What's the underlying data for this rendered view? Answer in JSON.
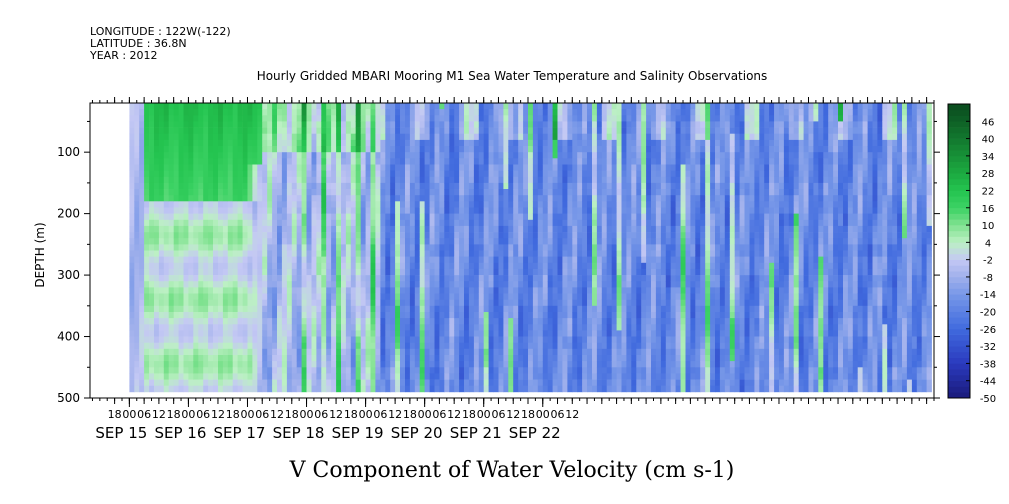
{
  "header": {
    "longitude": "LONGITUDE : 122W(-122)",
    "latitude": "LATITUDE : 36.8N",
    "year": "YEAR : 2012"
  },
  "chart_data": {
    "type": "heatmap",
    "title": "Hourly Gridded MBARI Mooring M1 Sea Water Temperature and Salinity Observations",
    "xlabel": "V Component of Water Velocity (cm s-1)",
    "ylabel": "DEPTH (m)",
    "y_range": [
      500,
      20
    ],
    "y_ticks": [
      100,
      200,
      300,
      400,
      500
    ],
    "y_tick_labels": [
      "100",
      "200",
      "300",
      "400",
      "500"
    ],
    "data_depth_range": [
      20,
      485
    ],
    "x_range_hours": [
      -16,
      327
    ],
    "hour_tick_labels": [
      "18",
      "00",
      "06",
      "12",
      "18",
      "00",
      "06",
      "12",
      "18",
      "00",
      "06",
      "12",
      "18",
      "00",
      "06",
      "12",
      "18",
      "00",
      "06",
      "12",
      "18",
      "00",
      "06",
      "12",
      "18",
      "00",
      "06",
      "12",
      "18",
      "00",
      "06",
      "12"
    ],
    "date_labels": [
      "SEP 15",
      "SEP 16",
      "SEP 17",
      "SEP 18",
      "SEP 19",
      "SEP 20",
      "SEP 21",
      "SEP 22"
    ],
    "colorbar": {
      "levels": [
        -50,
        -44,
        -38,
        -32,
        -26,
        -20,
        -14,
        -8,
        -2,
        4,
        10,
        16,
        22,
        28,
        34,
        40,
        46
      ],
      "labels": [
        "-50",
        "-44",
        "-38",
        "-32",
        "-26",
        "-20",
        "-14",
        "-8",
        "-2",
        "4",
        "10",
        "16",
        "22",
        "28",
        "34",
        "40",
        "46"
      ],
      "range": [
        -50,
        52
      ]
    },
    "field_summary": [
      {
        "period": "SEP 15 00 - SEP 17 06",
        "depth": "20-180 m",
        "value_range": [
          10,
          28
        ]
      },
      {
        "period": "SEP 15 00 - SEP 17 06",
        "depth": "180-485 m",
        "value_range": [
          -8,
          10
        ]
      },
      {
        "period": "SEP 17 06 - SEP 19 06",
        "depth": "20-485 m",
        "value_range": [
          -14,
          16
        ]
      },
      {
        "period": "SEP 19 06 - SEP 22 18",
        "depth": "20-485 m",
        "value_range": [
          -26,
          10
        ]
      }
    ]
  }
}
